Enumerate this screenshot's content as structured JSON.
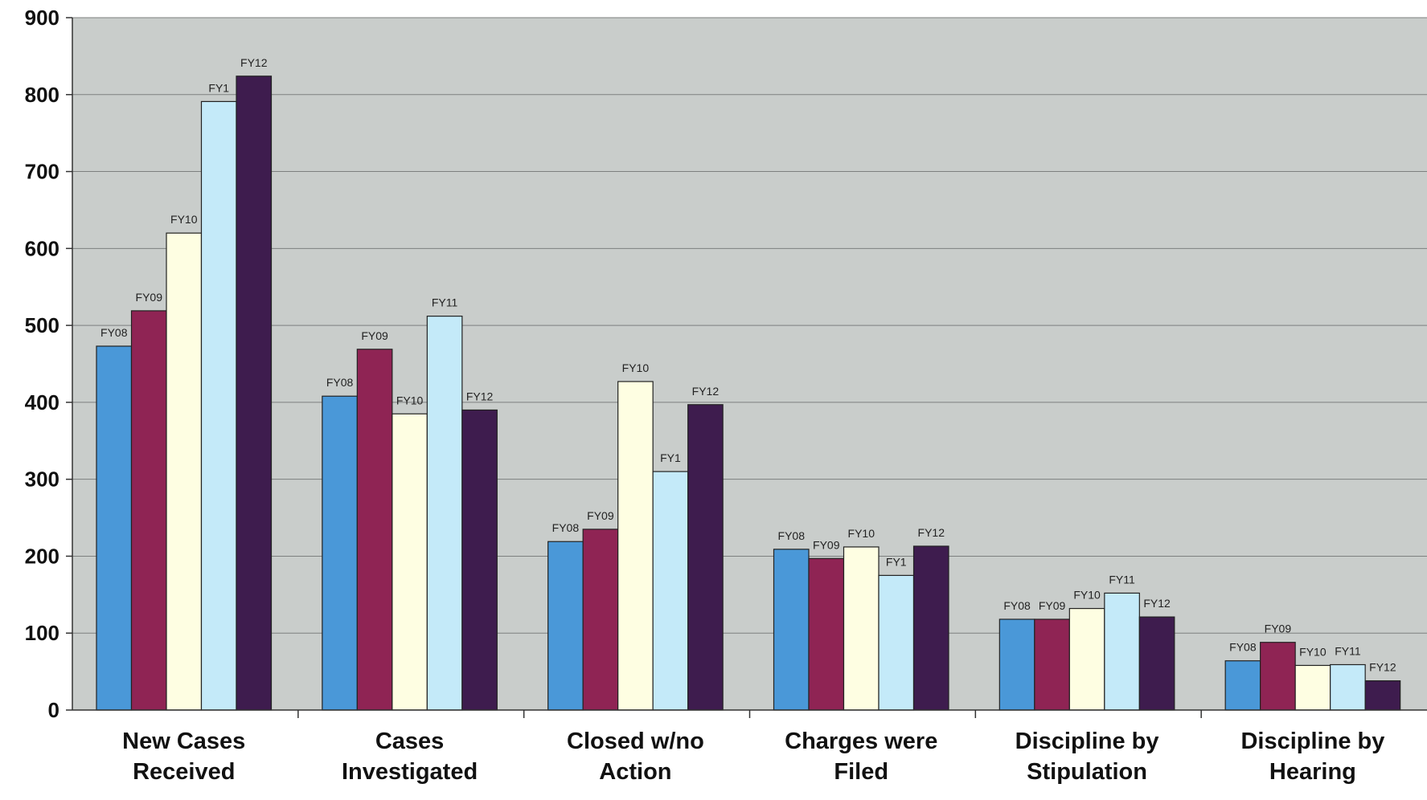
{
  "chart_data": {
    "type": "bar",
    "title": "",
    "xlabel": "",
    "ylabel": "",
    "ylim": [
      0,
      900
    ],
    "yticks": [
      "0",
      "100",
      "200",
      "300",
      "400",
      "500",
      "600",
      "700",
      "800",
      "900"
    ],
    "grid": true,
    "legend": "none",
    "categories": [
      [
        "New Cases",
        "Received"
      ],
      [
        "Cases",
        "Investigated"
      ],
      [
        "Closed w/no",
        "Action"
      ],
      [
        "Charges were",
        "Filed"
      ],
      [
        "Discipline by",
        "Stipulation"
      ],
      [
        "Discipline by",
        "Hearing"
      ]
    ],
    "series": [
      {
        "name": "FY08",
        "color": "#4a98d8",
        "values": [
          473,
          408,
          219,
          209,
          118,
          64
        ]
      },
      {
        "name": "FY09",
        "color": "#8f2454",
        "values": [
          519,
          469,
          235,
          197,
          118,
          88
        ]
      },
      {
        "name": "FY10",
        "color": "#fefee2",
        "values": [
          620,
          385,
          427,
          212,
          132,
          58
        ]
      },
      {
        "name": "FY11",
        "color": "#c4eaf9",
        "values": [
          791,
          512,
          310,
          175,
          152,
          59
        ]
      },
      {
        "name": "FY12",
        "color": "#3e1c4e",
        "values": [
          824,
          390,
          397,
          213,
          121,
          38
        ]
      }
    ],
    "data_labels": [
      [
        "FY08",
        "FY09",
        "FY10",
        "FY1",
        "FY12"
      ],
      [
        "FY08",
        "FY09",
        "FY10",
        "FY11",
        "FY12"
      ],
      [
        "FY08",
        "FY09",
        "FY10",
        "FY1",
        "FY12"
      ],
      [
        "FY08",
        "FY09",
        "FY10",
        "FY1",
        "FY12"
      ],
      [
        "FY08",
        "FY09",
        "FY10",
        "FY11",
        "FY12"
      ],
      [
        "FY08",
        "FY09",
        "FY10",
        "FY11",
        "FY12"
      ]
    ],
    "colors": {
      "plot_background": "#c9cdcb",
      "gridline": "#7d807f",
      "bar_outline": "#222222"
    }
  }
}
